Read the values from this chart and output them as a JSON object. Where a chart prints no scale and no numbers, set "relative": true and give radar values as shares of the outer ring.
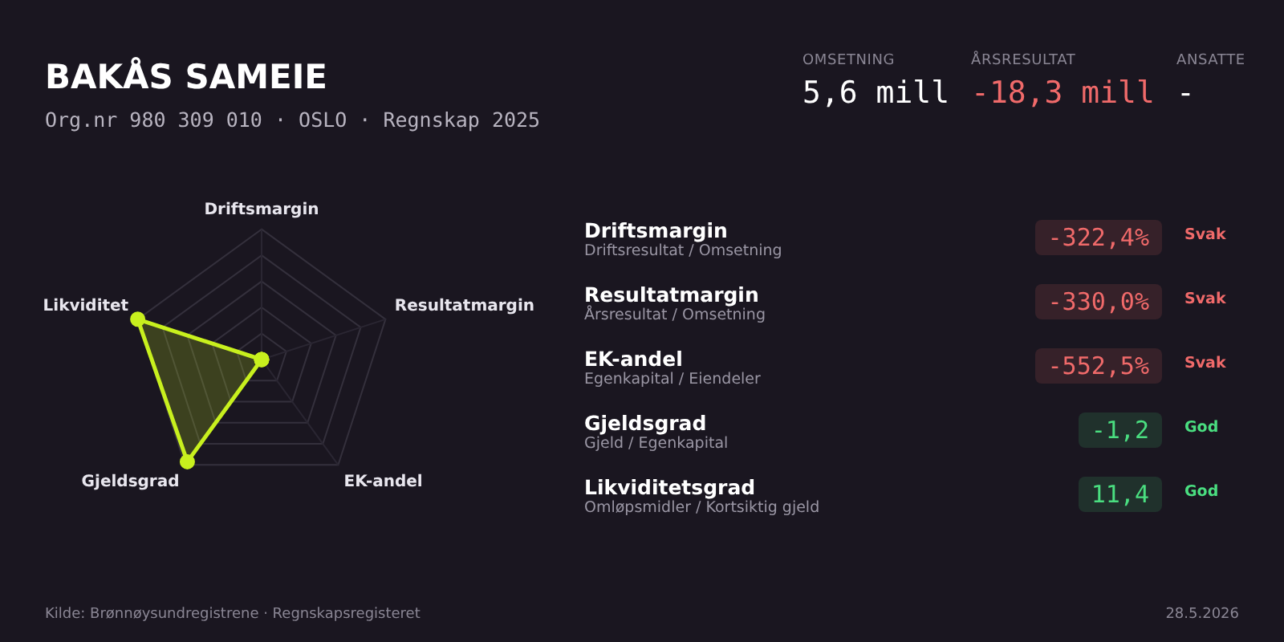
{
  "chart_data": [
    {
      "type": "other",
      "title": "BAKÅS SAMEIE",
      "subtitle": "Org.nr 980 309 010 · OSLO · Regnskap 2025",
      "categories": [
        "Driftsmargin",
        "Resultatmargin",
        "EK-andel",
        "Gjeldsgrad",
        "Likviditetsgrad"
      ],
      "value_labels": [
        "-322,4%",
        "-330,0%",
        "-552,5%",
        "-1,2",
        "11,4"
      ],
      "colors": [
        "#f06a6a",
        "#f06a6a",
        "#f06a6a",
        "#4ade80",
        "#4ade80"
      ],
      "annotations": [
        "OMSETNING",
        "5,6 mill",
        "ÅRSRESULTAT",
        "-18,3 mill",
        "ANSATTE",
        "-",
        "Driftsresultat / Omsetning",
        "Årsresultat / Omsetning",
        "Egenkapital / Eiendeler",
        "Gjeld / Egenkapital",
        "Omløpsmidler / Kortsiktig gjeld",
        "Svak",
        "Svak",
        "Svak",
        "God",
        "God",
        "Kilde: Brønnøysundregistrene · Regnskapsregisteret",
        "28.5.2026"
      ]
    },
    {
      "type": "radar",
      "categories": [
        "Driftsmargin",
        "Resultatmargin",
        "EK-andel",
        "Gjeldsgrad",
        "Likviditet"
      ],
      "relative": true,
      "grid": true,
      "marker": "circle",
      "series": [
        {
          "color": "#c8f01e",
          "values": [
            0,
            0,
            0,
            0.97,
            1
          ]
        }
      ]
    }
  ]
}
